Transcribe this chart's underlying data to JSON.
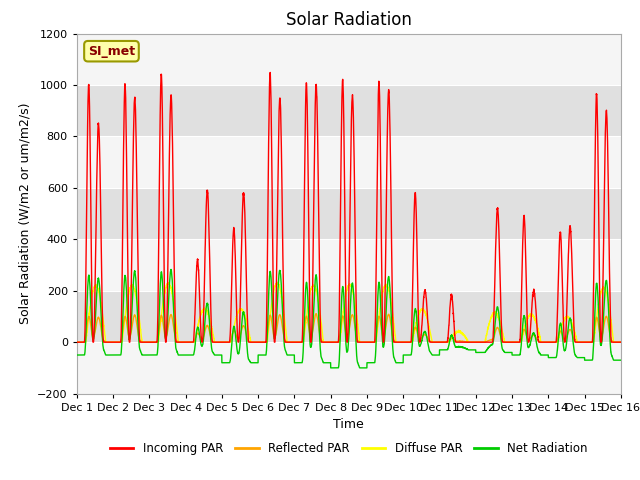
{
  "title": "Solar Radiation",
  "xlabel": "Time",
  "ylabel": "Solar Radiation (W/m2 or um/m2/s)",
  "ylim": [
    -200,
    1200
  ],
  "yticks": [
    -200,
    0,
    200,
    400,
    600,
    800,
    1000,
    1200
  ],
  "xlim": [
    0,
    15
  ],
  "xtick_positions": [
    0,
    1,
    2,
    3,
    4,
    5,
    6,
    7,
    8,
    9,
    10,
    11,
    12,
    13,
    14,
    15
  ],
  "xtick_labels": [
    "Dec 1",
    "Dec 2",
    "Dec 3",
    "Dec 4",
    "Dec 5",
    "Dec 6",
    "Dec 7",
    "Dec 8",
    "Dec 9",
    "Dec 10",
    "Dec 11",
    "Dec 12",
    "Dec 13",
    "Dec 14",
    "Dec 15",
    "Dec 16"
  ],
  "line_colors": {
    "incoming": "#FF0000",
    "reflected": "#FFA500",
    "diffuse": "#FFFF00",
    "net": "#00CC00"
  },
  "legend_entries": [
    "Incoming PAR",
    "Reflected PAR",
    "Diffuse PAR",
    "Net Radiation"
  ],
  "si_met_label": "SI_met",
  "si_met_box_color": "#FFFFAA",
  "si_met_border_color": "#999900",
  "si_met_text_color": "#880000",
  "background_color": "#FFFFFF",
  "plot_bg_color": "#F0F0F0",
  "band_light": "#F5F5F5",
  "band_dark": "#E0E0E0",
  "title_fontsize": 12,
  "axis_label_fontsize": 9,
  "tick_fontsize": 8,
  "days": 15,
  "pts_per_day": 288,
  "day_peaks_morning": [
    1000,
    1000,
    1040,
    320,
    440,
    1045,
    1005,
    1020,
    1010,
    580,
    185,
    0,
    490,
    430,
    965
  ],
  "day_peaks_afternoon": [
    850,
    950,
    960,
    590,
    580,
    950,
    1000,
    960,
    980,
    200,
    0,
    520,
    200,
    450,
    900
  ],
  "net_night": [
    -50,
    -50,
    -50,
    -50,
    -80,
    -50,
    -80,
    -100,
    -80,
    -50,
    -30,
    -40,
    -50,
    -60,
    -70
  ]
}
